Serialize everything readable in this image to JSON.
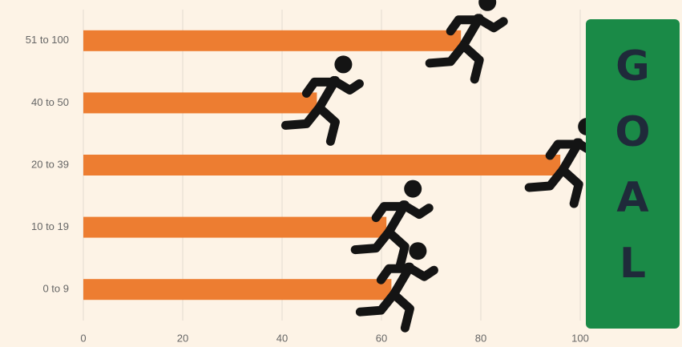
{
  "chart_data": {
    "type": "bar",
    "orientation": "horizontal",
    "categories": [
      "51 to 100",
      "40 to 50",
      "20 to 39",
      "10 to 19",
      "0 to 9"
    ],
    "values": [
      76,
      47,
      96,
      61,
      62
    ],
    "color": "#ed7d31",
    "xlim": [
      0,
      120
    ],
    "xticks": [
      0,
      20,
      40,
      60,
      80,
      100
    ],
    "grid": true,
    "annotation": "GOAL"
  }
}
